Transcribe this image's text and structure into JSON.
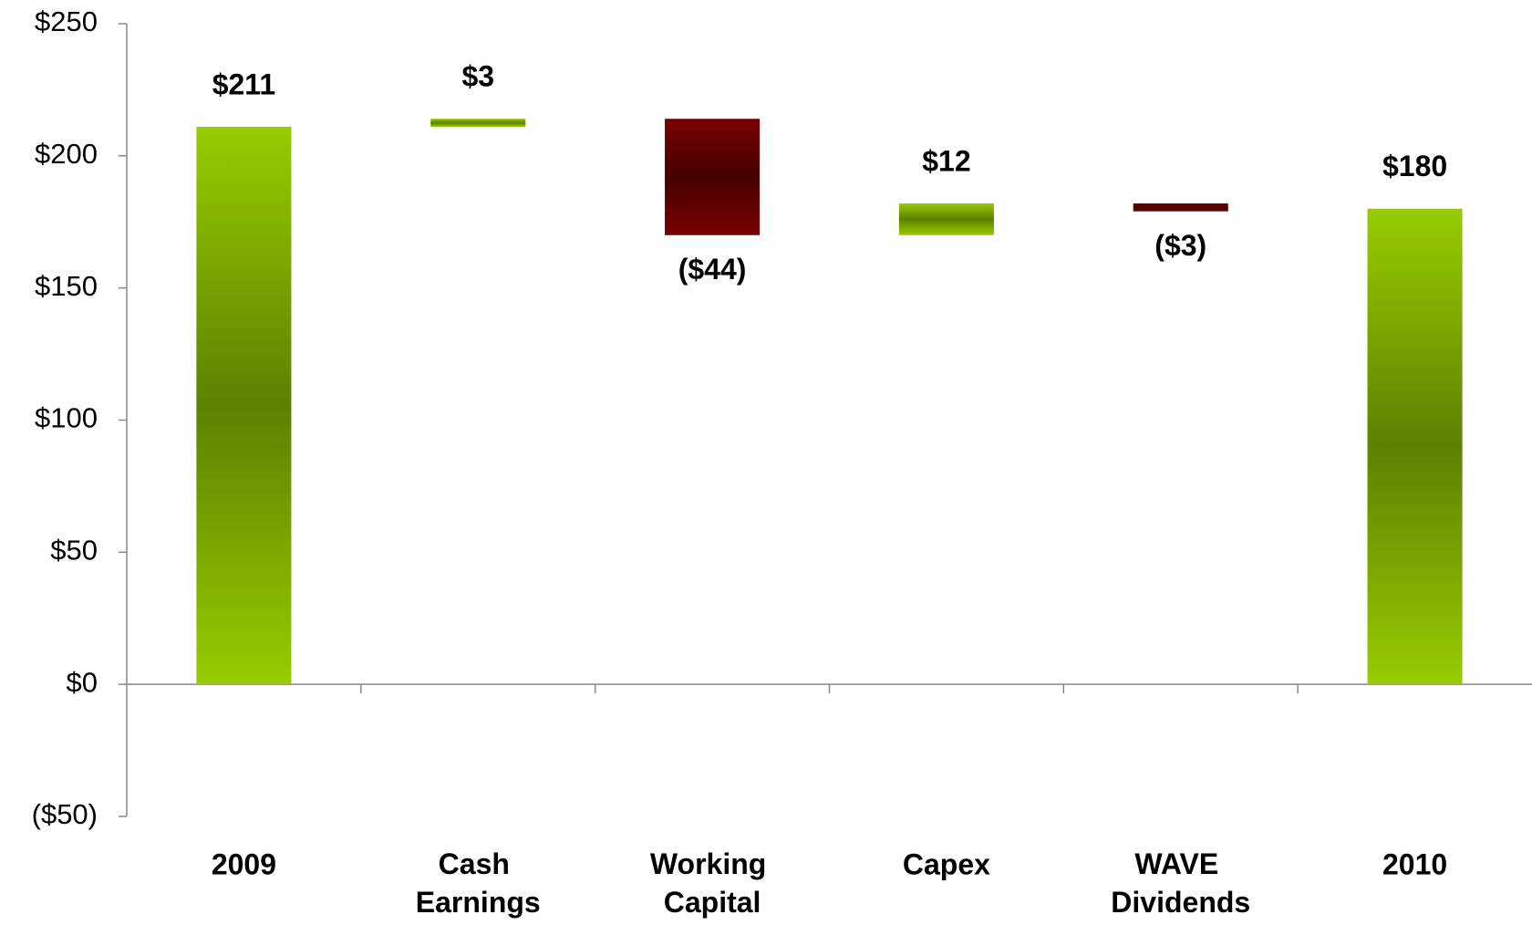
{
  "chart_data": {
    "type": "waterfall",
    "categories": [
      "2009",
      "Cash Earnings",
      "Working Capital",
      "Capex",
      "WAVE Dividends",
      "2010"
    ],
    "values": [
      211,
      3,
      -44,
      12,
      -3,
      180
    ],
    "value_labels": [
      "$211",
      "$3",
      "($44)",
      "$12",
      "($3)",
      "$180"
    ],
    "increase_color": "#99cc00",
    "decrease_color": "#7a0000",
    "ylim": [
      -50,
      250
    ],
    "yticks": [
      {
        "value": -50,
        "label": "($50)"
      },
      {
        "value": 0,
        "label": "$0"
      },
      {
        "value": 50,
        "label": "$50"
      },
      {
        "value": 100,
        "label": "$100"
      },
      {
        "value": 150,
        "label": "$150"
      },
      {
        "value": 200,
        "label": "$200"
      },
      {
        "value": 250,
        "label": "$250"
      }
    ]
  }
}
